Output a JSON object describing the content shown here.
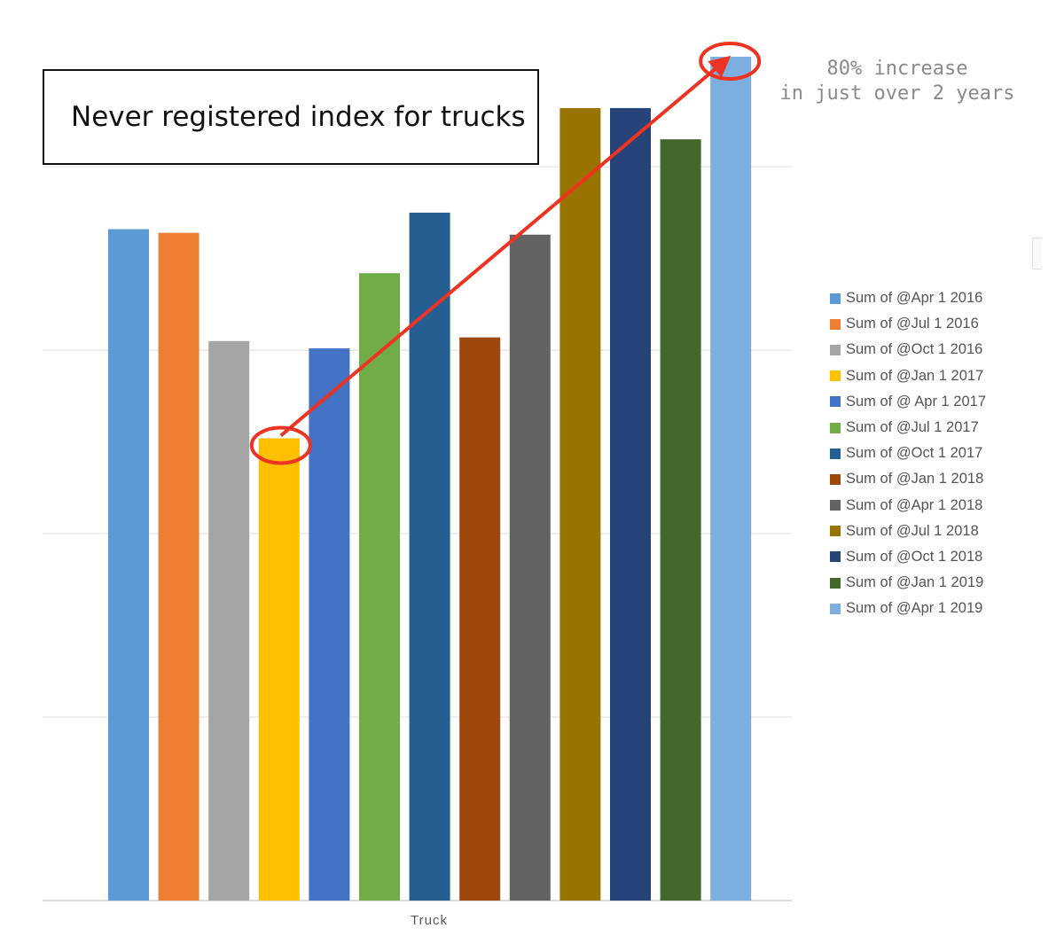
{
  "title": "Never registered index for trucks",
  "annotation": {
    "line1": "80% increase",
    "line2": "in just over 2 years"
  },
  "chart_data": {
    "type": "bar",
    "categories": [
      "Truck"
    ],
    "xlabel": "Truck",
    "ylabel": "",
    "ylim": [
      0,
      4.6
    ],
    "grid": true,
    "y_axis_labels_shown": false,
    "legend_position": "right",
    "series": [
      {
        "name": "Sum of @Apr 1 2016",
        "values": [
          3.66
        ],
        "color": "#5B9BD5"
      },
      {
        "name": "Sum of @Jul 1 2016",
        "values": [
          3.64
        ],
        "color": "#ED7D31"
      },
      {
        "name": "Sum of @Oct 1 2016",
        "values": [
          3.05
        ],
        "color": "#A5A5A5"
      },
      {
        "name": "Sum of @Jan 1 2017",
        "values": [
          2.52
        ],
        "color": "#FFC000"
      },
      {
        "name": "Sum of @ Apr 1 2017",
        "values": [
          3.01
        ],
        "color": "#4472C4"
      },
      {
        "name": "Sum of @Jul 1 2017",
        "values": [
          3.42
        ],
        "color": "#70AD47"
      },
      {
        "name": "Sum of @Oct 1 2017",
        "values": [
          3.75
        ],
        "color": "#255E91"
      },
      {
        "name": "Sum of @Jan 1 2018",
        "values": [
          3.07
        ],
        "color": "#9E480E"
      },
      {
        "name": "Sum of @Apr 1 2018",
        "values": [
          3.63
        ],
        "color": "#636363"
      },
      {
        "name": "Sum of @Jul 1 2018",
        "values": [
          4.32
        ],
        "color": "#997300"
      },
      {
        "name": "Sum of @Oct 1 2018",
        "values": [
          4.32
        ],
        "color": "#264478"
      },
      {
        "name": "Sum of @Jan 1 2019",
        "values": [
          4.15
        ],
        "color": "#43682B"
      },
      {
        "name": "Sum of @Apr 1 2019",
        "values": [
          4.6
        ],
        "color": "#7CAFDD"
      }
    ],
    "highlight": {
      "from_series": 3,
      "to_series": 12,
      "color": "#EE3322"
    }
  }
}
